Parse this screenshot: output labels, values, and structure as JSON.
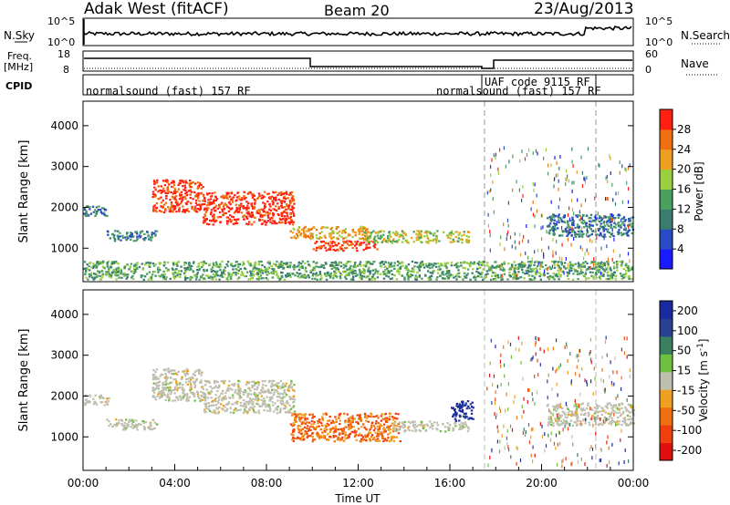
{
  "header": {
    "station": "Adak West (fitACF)",
    "beam": "Beam 20",
    "date": "23/Aug/2013"
  },
  "panels": {
    "nsky": {
      "label": "N.Sky",
      "right_label": "N.Search",
      "ticks": [
        "10^5",
        "10^0"
      ],
      "right_ticks": [
        "10^5",
        "10^0"
      ]
    },
    "freq": {
      "label_line1": "Freq.",
      "label_line2": "[MHz]",
      "right_label": "Nave",
      "ticks": [
        "18",
        "8"
      ],
      "right_ticks": [
        "60",
        "0"
      ]
    },
    "cpid": {
      "label": "CPID",
      "segments": [
        {
          "text": "normalsound (fast) 157 RF"
        },
        {
          "text": "normalsound (fast) 157 RF"
        },
        {
          "text": "UAF code 9115 RF"
        }
      ]
    }
  },
  "colors": {
    "power": [
      "#1a1aff",
      "#2a4bc8",
      "#3a7d6e",
      "#4aa060",
      "#9ad040",
      "#f0a020",
      "#f07010",
      "#ff2010"
    ],
    "velocity": [
      "#e01010",
      "#f04010",
      "#f07010",
      "#f0a020",
      "#bfbfb0",
      "#70c040",
      "#3a8060",
      "#2a4090",
      "#1a2aa0"
    ]
  },
  "chart_data": [
    {
      "type": "heatmap",
      "name_colorbar": "Power [dB]",
      "ylabel": "Slant Range [km]",
      "yticks": [
        1000,
        2000,
        3000,
        4000
      ],
      "ylim": [
        180,
        4600
      ],
      "xlim_hours": [
        0,
        24
      ],
      "colorbar_ticks": [
        4,
        8,
        12,
        16,
        20,
        24,
        28
      ],
      "colorbar_range": [
        0,
        32
      ],
      "regions": [
        {
          "t0": 0.0,
          "t1": 1.1,
          "r0": 1800,
          "r1": 2050,
          "bin": 2
        },
        {
          "t0": 1.0,
          "t1": 3.2,
          "r0": 1200,
          "r1": 1450,
          "bin": 2
        },
        {
          "t0": 3.0,
          "t1": 5.2,
          "r0": 1900,
          "r1": 2700,
          "bin": 7
        },
        {
          "t0": 5.2,
          "t1": 9.2,
          "r0": 1600,
          "r1": 2400,
          "bin": 7
        },
        {
          "t0": 9.0,
          "t1": 12.5,
          "r0": 1250,
          "r1": 1550,
          "bin": 5
        },
        {
          "t0": 10.0,
          "t1": 12.8,
          "r0": 950,
          "r1": 1200,
          "bin": 7
        },
        {
          "t0": 12.2,
          "t1": 16.8,
          "r0": 1150,
          "r1": 1450,
          "bin": 4
        },
        {
          "t0": 20.2,
          "t1": 24.0,
          "r0": 1300,
          "r1": 1850,
          "bin": 2
        },
        {
          "t0": 0.0,
          "t1": 24.0,
          "r0": 250,
          "r1": 700,
          "bin": 3
        }
      ]
    },
    {
      "type": "heatmap",
      "name_colorbar": "Velocity [m s^-1]",
      "ylabel": "Slant Range [km]",
      "xlabel": "Time UT",
      "yticks": [
        1000,
        2000,
        3000,
        4000
      ],
      "ylim": [
        180,
        4600
      ],
      "xlim_hours": [
        0,
        24
      ],
      "xtick_labels": [
        "00:00",
        "04:00",
        "08:00",
        "12:00",
        "16:00",
        "20:00",
        "00:00"
      ],
      "colorbar_ticks": [
        200,
        100,
        50,
        15,
        -15,
        -50,
        -100,
        -200
      ],
      "regions": [
        {
          "t0": 0.0,
          "t1": 1.1,
          "r0": 1800,
          "r1": 2050,
          "bin": 4
        },
        {
          "t0": 1.0,
          "t1": 3.2,
          "r0": 1200,
          "r1": 1450,
          "bin": 4
        },
        {
          "t0": 3.0,
          "t1": 5.2,
          "r0": 1900,
          "r1": 2700,
          "bin": 4
        },
        {
          "t0": 5.2,
          "t1": 9.2,
          "r0": 1600,
          "r1": 2400,
          "bin": 4
        },
        {
          "t0": 9.0,
          "t1": 13.8,
          "r0": 900,
          "r1": 1600,
          "bin": 2
        },
        {
          "t0": 13.5,
          "t1": 16.8,
          "r0": 1150,
          "r1": 1400,
          "bin": 4
        },
        {
          "t0": 16.0,
          "t1": 17.0,
          "r0": 1400,
          "r1": 1900,
          "bin": 8
        },
        {
          "t0": 20.2,
          "t1": 24.0,
          "r0": 1300,
          "r1": 1850,
          "bin": 4
        }
      ]
    }
  ]
}
